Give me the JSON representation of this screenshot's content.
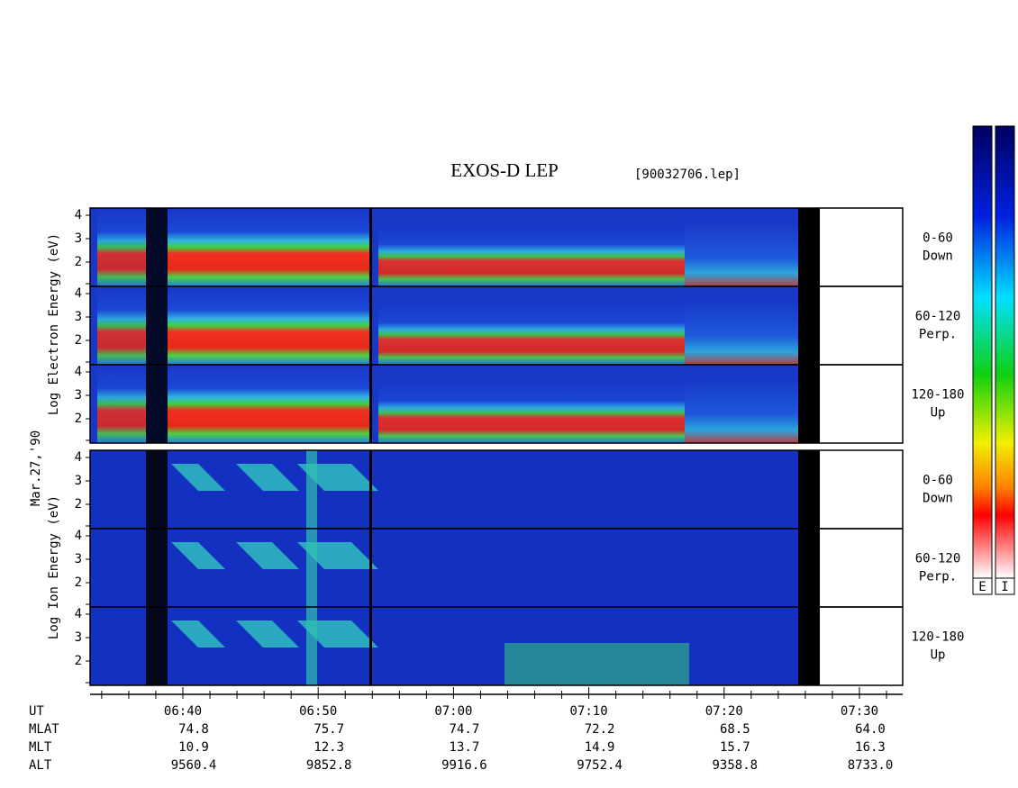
{
  "header": {
    "title": "EXOS-D LEP",
    "file": "[90032706.lep]"
  },
  "date": "Mar.27,'90",
  "electron_label": "Log Electron Energy (eV)",
  "ion_label": "Log Ion Energy (eV)",
  "energy_ticks": [
    "4",
    "3",
    "2"
  ],
  "channels": [
    {
      "range": "0-60",
      "direction": "Down"
    },
    {
      "range": "60-120",
      "direction": "Perp."
    },
    {
      "range": "120-180",
      "direction": "Up"
    }
  ],
  "colorbar_labels": [
    "E",
    "I"
  ],
  "time_axis": {
    "rows": [
      "UT",
      "MLAT",
      "MLT",
      "ALT"
    ],
    "columns": [
      [
        "06:40",
        "74.8",
        "10.9",
        "9560.4"
      ],
      [
        "06:50",
        "75.7",
        "12.3",
        "9852.8"
      ],
      [
        "07:00",
        "74.7",
        "13.7",
        "9916.6"
      ],
      [
        "07:10",
        "72.2",
        "14.9",
        "9752.4"
      ],
      [
        "07:20",
        "68.5",
        "15.7",
        "9358.8"
      ],
      [
        "07:30",
        "64.0",
        "16.3",
        "8733.0"
      ]
    ]
  }
}
